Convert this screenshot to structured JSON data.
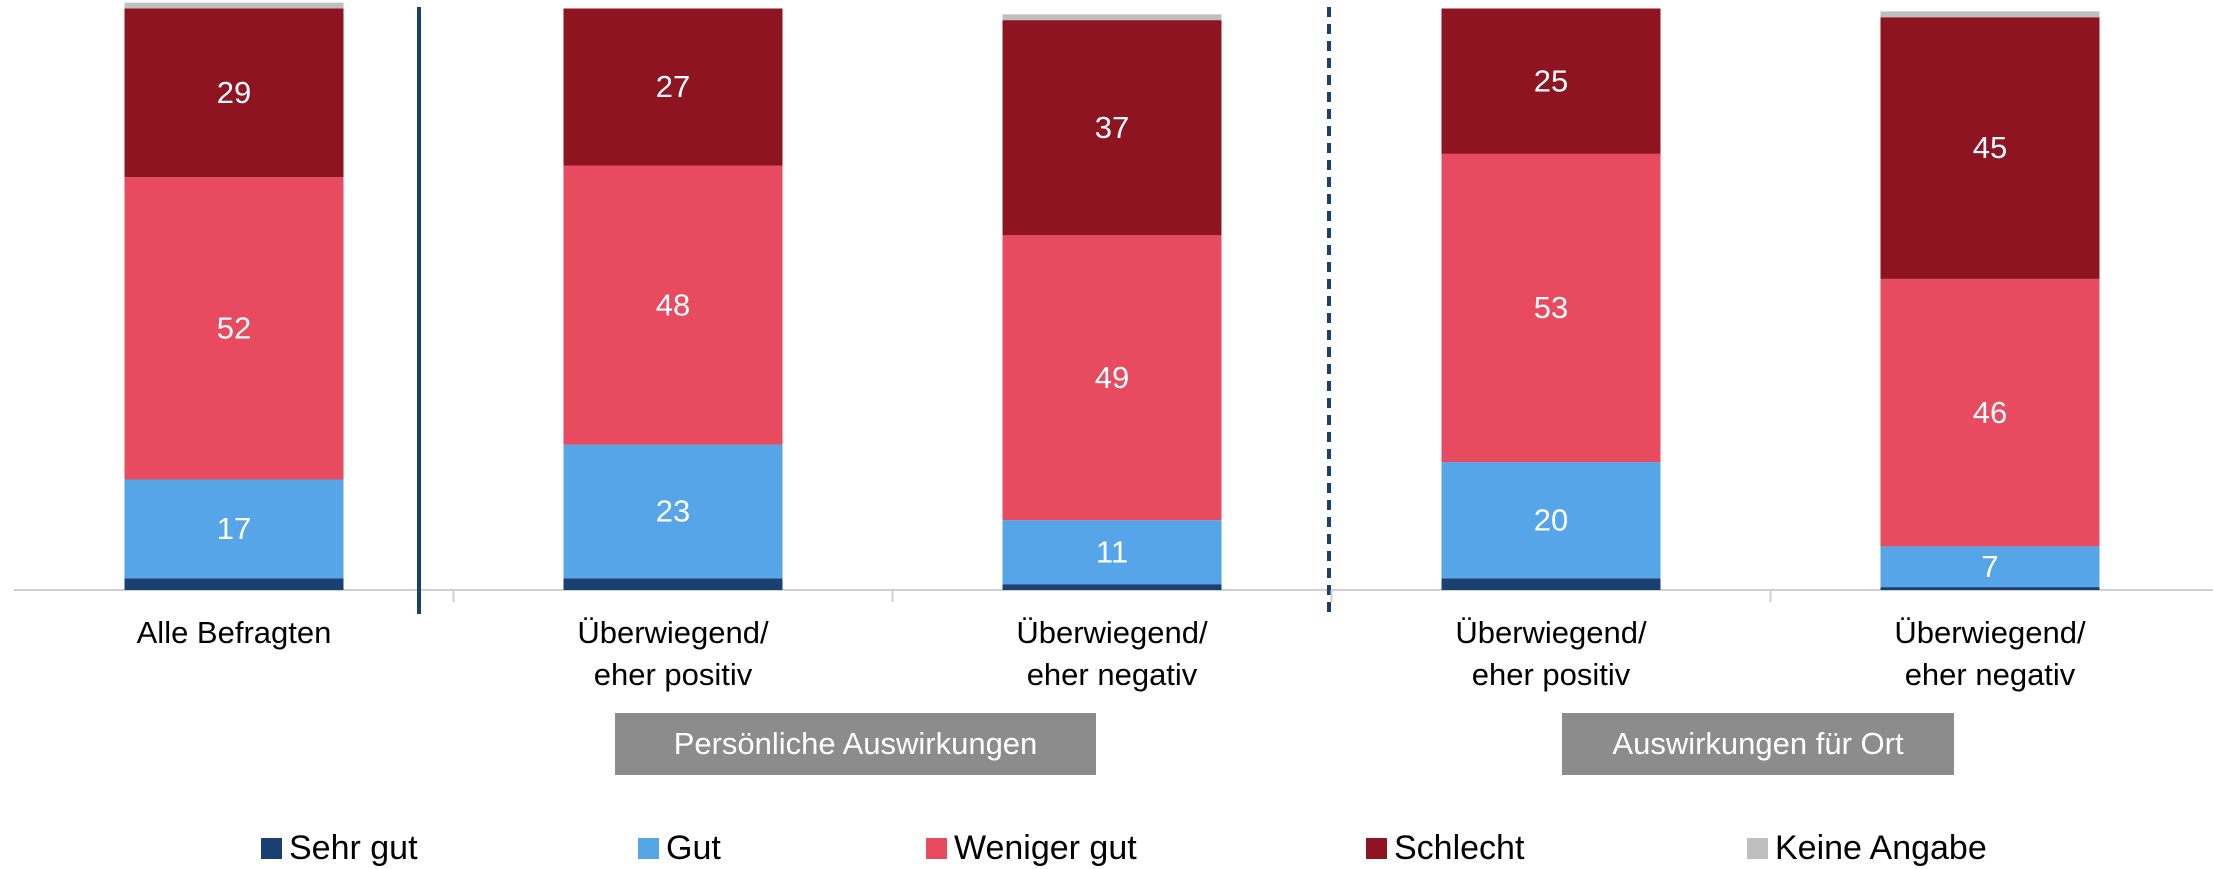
{
  "chart_data": {
    "type": "stacked_bar",
    "categories": [
      [
        "Alle Befragten"
      ],
      [
        "Überwiegend/",
        "eher positiv"
      ],
      [
        "Überwiegend/",
        "eher negativ"
      ],
      [
        "Überwiegend/",
        "eher positiv"
      ],
      [
        "Überwiegend/",
        "eher negativ"
      ]
    ],
    "groups": [
      "Persönliche Auswirkungen",
      "Auswirkungen für Ort"
    ],
    "ylim": [
      0,
      100
    ],
    "series": [
      {
        "name": "Sehr gut",
        "color": "#1a3f73",
        "values": [
          2,
          2,
          1,
          2,
          0.5
        ],
        "labels": false
      },
      {
        "name": "Gut",
        "color": "#56a5e8",
        "values": [
          17,
          23,
          11,
          20,
          7
        ],
        "labels": true
      },
      {
        "name": "Weniger gut",
        "color": "#e84a5f",
        "values": [
          52,
          48,
          49,
          53,
          46
        ],
        "labels": true
      },
      {
        "name": "Schlecht",
        "color": "#8e1422",
        "values": [
          29,
          27,
          37,
          25,
          45
        ],
        "labels": true
      },
      {
        "name": "Keine Angabe",
        "color": "#bfbfbf",
        "values": [
          1,
          0,
          1,
          0,
          1
        ],
        "labels": false
      }
    ]
  }
}
